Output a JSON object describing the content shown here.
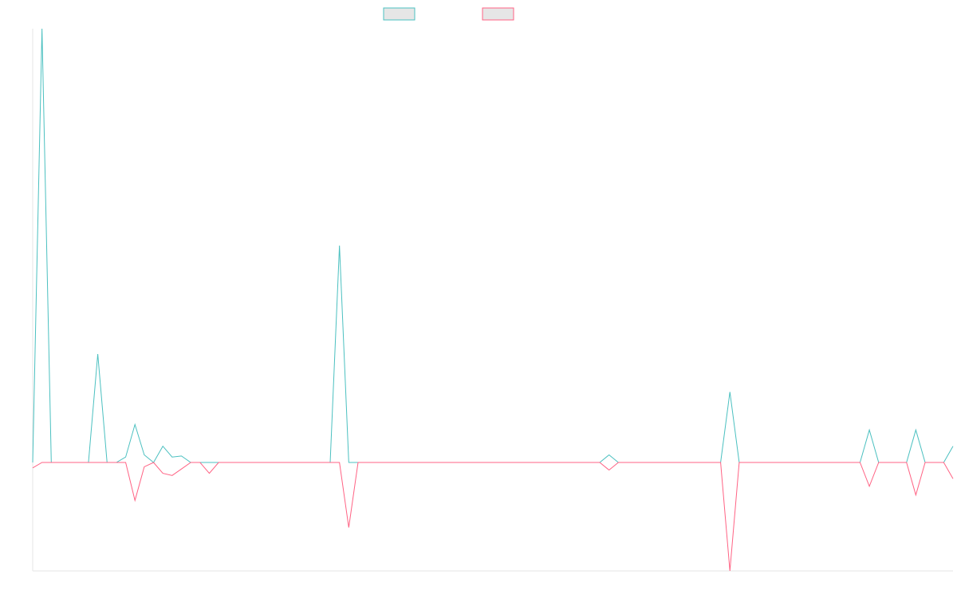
{
  "chart_data": {
    "type": "line",
    "title": "",
    "xlabel": "",
    "ylabel": "",
    "grid": false,
    "legend_position": "top-center",
    "x_count": 100,
    "ylim": [
      -1,
      4
    ],
    "series": [
      {
        "color": "#4bc0c0",
        "values": [
          0,
          4,
          0,
          0,
          0,
          0,
          0,
          1,
          0,
          0,
          0.05,
          0.35,
          0.07,
          0,
          0.15,
          0.05,
          0.06,
          0,
          0,
          0,
          0,
          0,
          0,
          0,
          0,
          0,
          0,
          0,
          0,
          0,
          0,
          0,
          0,
          2,
          0,
          0,
          0,
          0,
          0,
          0,
          0,
          0,
          0,
          0,
          0,
          0,
          0,
          0,
          0,
          0,
          0,
          0,
          0,
          0,
          0,
          0,
          0,
          0,
          0,
          0,
          0,
          0,
          0.07,
          0,
          0,
          0,
          0,
          0,
          0,
          0,
          0,
          0,
          0,
          0,
          0,
          0.65,
          0,
          0,
          0,
          0,
          0,
          0,
          0,
          0,
          0,
          0,
          0,
          0,
          0,
          0,
          0.3,
          0,
          0,
          0,
          0,
          0.3,
          0,
          0,
          0,
          0.15
        ]
      },
      {
        "color": "#ff6384",
        "values": [
          -0.05,
          0,
          0,
          0,
          0,
          0,
          0,
          0,
          0,
          0,
          0,
          -0.35,
          -0.04,
          0,
          -0.1,
          -0.12,
          -0.06,
          0,
          0,
          -0.1,
          0,
          0,
          0,
          0,
          0,
          0,
          0,
          0,
          0,
          0,
          0,
          0,
          0,
          0,
          -0.6,
          0,
          0,
          0,
          0,
          0,
          0,
          0,
          0,
          0,
          0,
          0,
          0,
          0,
          0,
          0,
          0,
          0,
          0,
          0,
          0,
          0,
          0,
          0,
          0,
          0,
          0,
          0,
          -0.07,
          0,
          0,
          0,
          0,
          0,
          0,
          0,
          0,
          0,
          0,
          0,
          0,
          -1,
          0,
          0,
          0,
          0,
          0,
          0,
          0,
          0,
          0,
          0,
          0,
          0,
          0,
          0,
          -0.22,
          0,
          0,
          0,
          0,
          -0.3,
          0,
          0,
          0,
          -0.15
        ]
      }
    ]
  }
}
